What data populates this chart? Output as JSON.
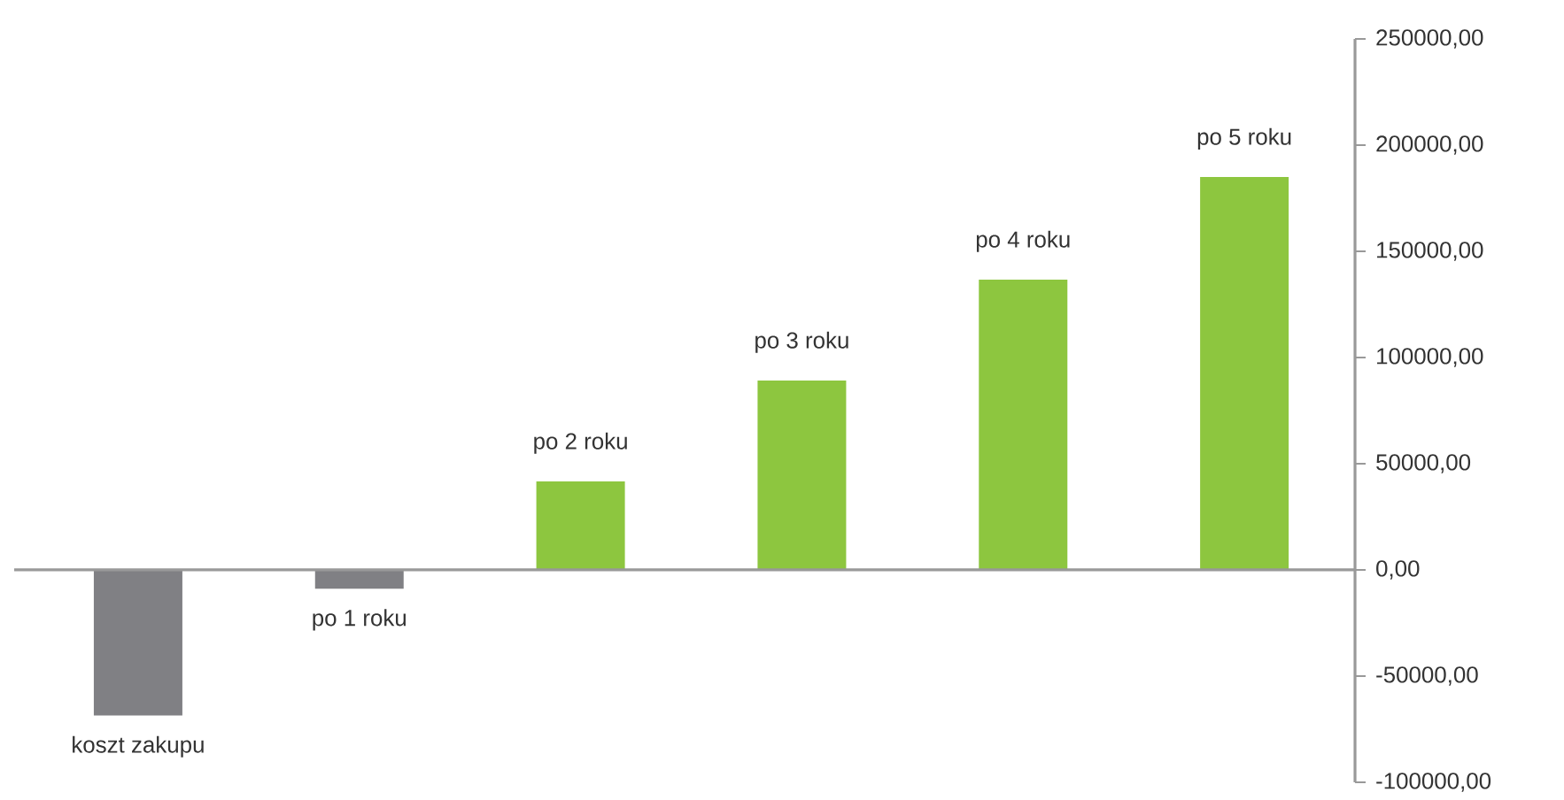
{
  "chart_data": {
    "type": "bar",
    "categories": [
      "koszt zakupu",
      "po 1 roku",
      "po 2 roku",
      "po 3 roku",
      "po 4 roku",
      "po 5 roku"
    ],
    "values": [
      -68600,
      -8900,
      41700,
      89200,
      136700,
      185000
    ],
    "colors": [
      "#808084",
      "#808084",
      "#8dc63f",
      "#8dc63f",
      "#8dc63f",
      "#8dc63f"
    ],
    "ylim": [
      -100000,
      250000
    ],
    "yticks": [
      {
        "value": -100000,
        "label": "-100000,00"
      },
      {
        "value": -50000,
        "label": "-50000,00"
      },
      {
        "value": 0,
        "label": "0,00"
      },
      {
        "value": 50000,
        "label": "50000,00"
      },
      {
        "value": 100000,
        "label": "100000,00"
      },
      {
        "value": 150000,
        "label": "150000,00"
      },
      {
        "value": 200000,
        "label": "200000,00"
      },
      {
        "value": 250000,
        "label": "250000,00"
      }
    ]
  }
}
